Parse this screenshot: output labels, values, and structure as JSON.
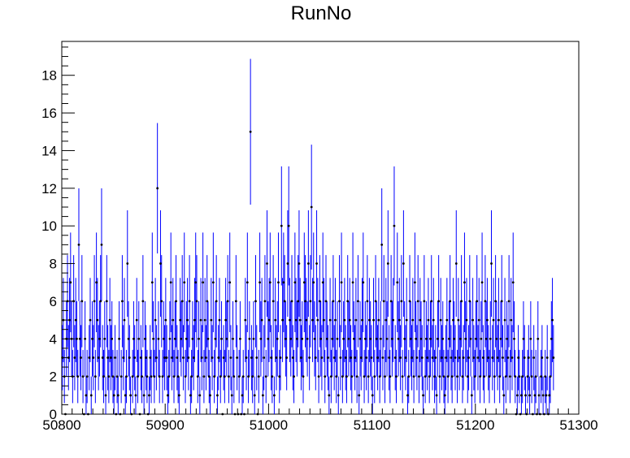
{
  "chart_data": {
    "type": "scatter",
    "title": "RunNo",
    "xlabel": "",
    "ylabel": "",
    "xlim": [
      50800,
      51300
    ],
    "ylim": [
      0,
      19.8
    ],
    "x_ticks": [
      50800,
      50900,
      51000,
      51100,
      51200,
      51300
    ],
    "y_ticks": [
      0,
      2,
      4,
      6,
      8,
      10,
      12,
      14,
      16,
      18
    ],
    "grid": false,
    "legend": "none",
    "error_bars": "sqrt(y)",
    "colors": {
      "marker": "#000000",
      "error_bar": "#0000ff",
      "frame": "#000000"
    },
    "series": [
      {
        "x_start": 50800,
        "x_step": 1,
        "values": [
          3,
          5,
          2,
          0,
          4,
          6,
          3,
          5,
          7,
          4,
          2,
          6,
          3,
          5,
          4,
          2,
          9,
          4,
          3,
          6,
          2,
          0,
          4,
          1,
          2,
          0,
          3,
          5,
          1,
          4,
          3,
          6,
          2,
          7,
          5,
          3,
          4,
          6,
          9,
          3,
          2,
          4,
          1,
          6,
          3,
          2,
          5,
          3,
          4,
          2,
          1,
          3,
          0,
          2,
          1,
          4,
          0,
          2,
          6,
          3,
          5,
          1,
          2,
          8,
          4,
          3,
          1,
          0,
          2,
          4,
          3,
          1,
          5,
          2,
          4,
          0,
          3,
          2,
          6,
          1,
          4,
          3,
          2,
          0,
          1,
          3,
          2,
          7,
          4,
          2,
          5,
          3,
          12,
          4,
          2,
          8,
          6,
          2,
          4,
          3,
          5,
          3,
          1,
          2,
          4,
          7,
          3,
          5,
          2,
          4,
          6,
          3,
          2,
          1,
          5,
          4,
          6,
          3,
          7,
          2,
          4,
          5,
          3,
          6,
          1,
          2,
          4,
          3,
          5,
          7,
          6,
          2,
          4,
          1,
          5,
          3,
          7,
          2,
          5,
          3,
          6,
          4,
          2,
          1,
          5,
          3,
          7,
          2,
          4,
          6,
          1,
          3,
          5,
          2,
          4,
          0,
          3,
          2,
          5,
          4,
          6,
          2,
          7,
          3,
          1,
          4,
          2,
          0,
          6,
          3,
          0,
          2,
          4,
          0,
          1,
          2,
          0,
          5,
          3,
          7,
          2,
          4,
          15,
          3,
          2,
          4,
          1,
          6,
          3,
          0,
          2,
          7,
          4,
          5,
          1,
          3,
          6,
          2,
          8,
          4,
          5,
          7,
          3,
          2,
          6,
          1,
          5,
          3,
          4,
          7,
          2,
          3,
          10,
          5,
          7,
          6,
          4,
          3,
          8,
          10,
          5,
          4,
          6,
          3,
          2,
          7,
          5,
          4,
          6,
          8,
          5,
          3,
          4,
          2,
          7,
          6,
          5,
          4,
          8,
          3,
          6,
          11,
          5,
          7,
          4,
          3,
          8,
          5,
          2,
          6,
          4,
          3,
          7,
          5,
          2,
          6,
          4,
          3,
          1,
          5,
          2,
          4,
          6,
          3,
          5,
          2,
          4,
          1,
          6,
          3,
          7,
          2,
          4,
          5,
          3,
          2,
          6,
          4,
          5,
          3,
          2,
          7,
          4,
          3,
          5,
          2,
          6,
          1,
          4,
          3,
          5,
          7,
          2,
          4,
          3,
          6,
          2,
          5,
          4,
          3,
          1,
          5,
          2,
          6,
          4,
          3,
          5,
          2,
          4,
          9,
          3,
          6,
          2,
          5,
          4,
          8,
          3,
          2,
          6,
          4,
          5,
          10,
          3,
          2,
          7,
          4,
          5,
          3,
          6,
          2,
          8,
          4,
          3,
          5,
          1,
          2,
          6,
          4,
          3,
          5,
          2,
          7,
          4,
          3,
          6,
          2,
          5,
          4,
          3,
          1,
          6,
          2,
          4,
          3,
          5,
          2,
          4,
          6,
          3,
          5,
          2,
          3,
          1,
          4,
          6,
          2,
          5,
          3,
          4,
          2,
          1,
          3,
          5,
          2,
          4,
          6,
          3,
          2,
          5,
          4,
          3,
          8,
          2,
          5,
          3,
          4,
          6,
          2,
          3,
          7,
          4,
          5,
          2,
          3,
          6,
          4,
          1,
          5,
          3,
          2,
          4,
          6,
          3,
          5,
          2,
          4,
          7,
          3,
          2,
          6,
          4,
          5,
          3,
          2,
          4,
          8,
          3,
          5,
          2,
          6,
          4,
          3,
          5,
          2,
          4,
          6,
          3,
          1,
          5,
          2,
          4,
          3,
          6,
          2,
          5,
          3,
          7,
          4,
          2,
          0,
          1,
          3,
          2,
          0,
          1,
          2,
          4,
          3,
          1,
          0,
          2,
          3,
          1,
          4,
          2,
          0,
          3,
          1,
          2,
          0,
          4,
          1,
          0,
          2,
          3,
          1,
          0,
          2,
          1,
          3,
          0,
          1,
          2,
          4,
          5,
          3
        ]
      }
    ]
  }
}
